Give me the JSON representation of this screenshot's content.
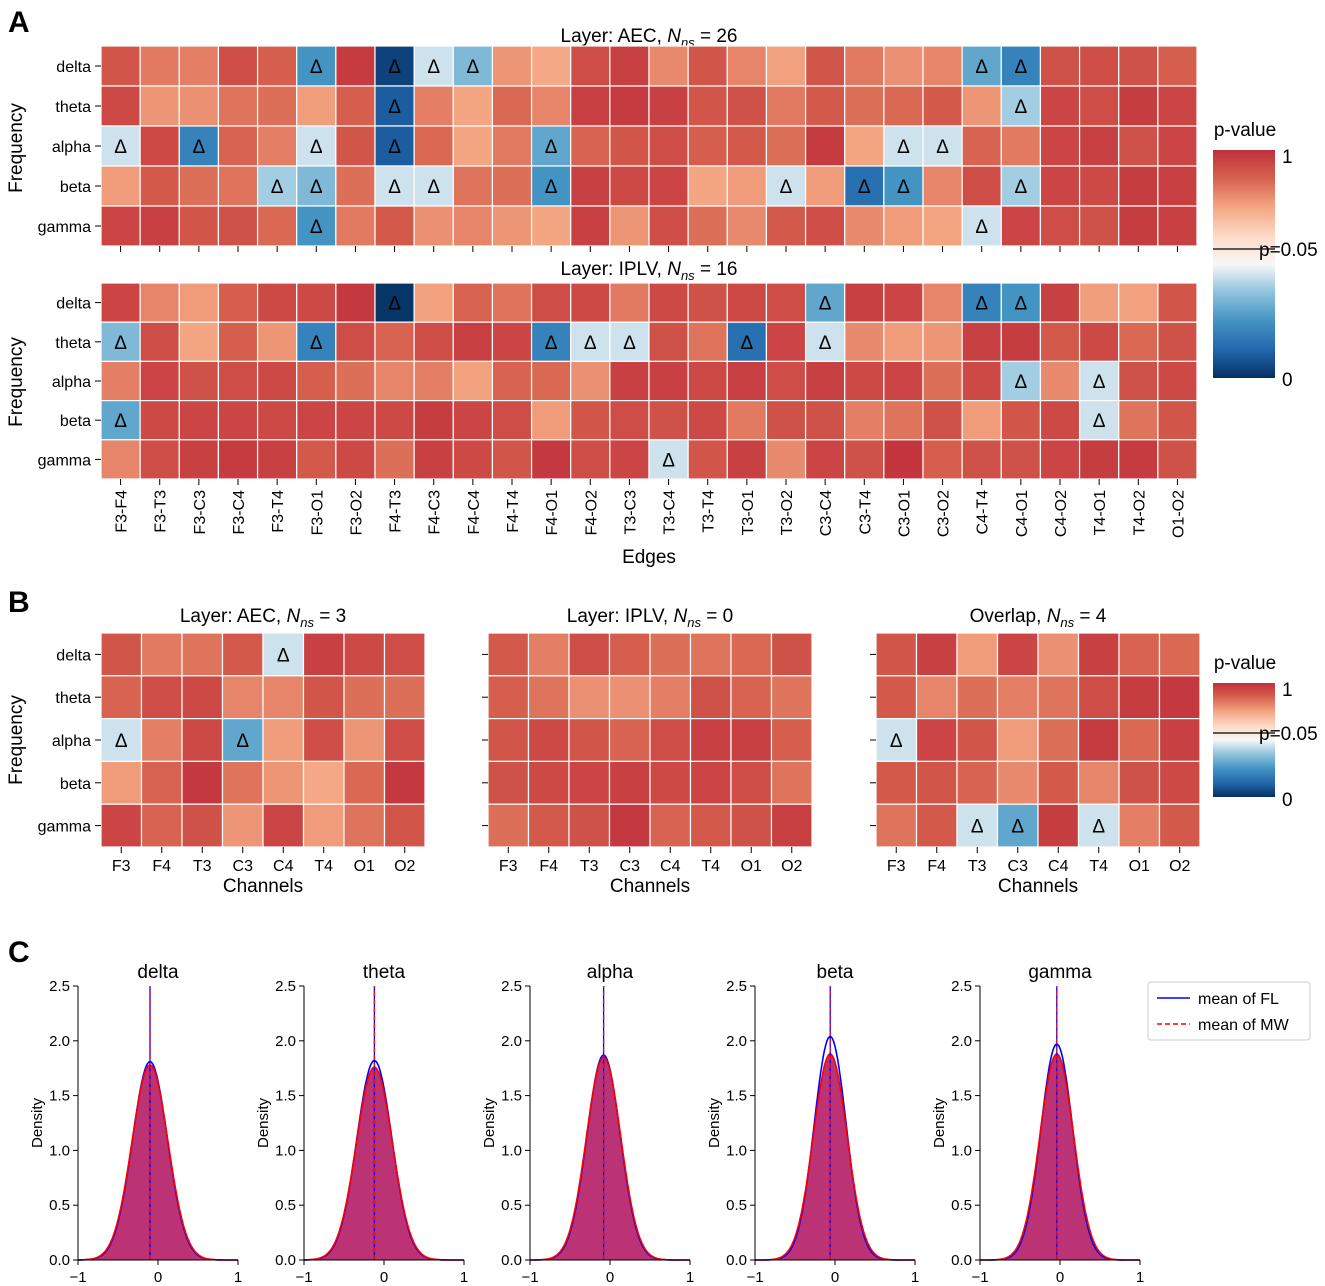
{
  "panels": {
    "a": "A",
    "b": "B",
    "c": "C"
  },
  "colorbar": {
    "title": "p-value",
    "top": "1",
    "bottom": "0",
    "threshold": "p=0.05",
    "threshold_value": 0.05
  },
  "marker": "Δ",
  "chart_data": [
    {
      "type": "heatmap",
      "id": "A1",
      "title_prefix": "Layer: AEC, ",
      "title_n": "N",
      "title_sub": "ns",
      "title_suffix": " = 26",
      "ylabel": "Frequency",
      "rows": [
        "delta",
        "theta",
        "alpha",
        "beta",
        "gamma"
      ],
      "cols": [
        "F3-F4",
        "F3-T3",
        "F3-C3",
        "F3-C4",
        "F3-T4",
        "F3-O1",
        "F3-O2",
        "F4-T3",
        "F4-C3",
        "F4-C4",
        "F4-T4",
        "F4-O1",
        "F4-O2",
        "T3-C3",
        "T3-C4",
        "T3-T4",
        "T3-O1",
        "T3-O2",
        "C3-C4",
        "C3-T4",
        "C3-O1",
        "C3-O2",
        "C4-T4",
        "C4-O1",
        "C4-O2",
        "T4-O1",
        "T4-O2",
        "O1-O2"
      ],
      "show_col_labels": false,
      "values": [
        [
          0.82,
          0.68,
          0.66,
          0.86,
          0.78,
          0.025,
          0.95,
          0.004,
          0.045,
          0.035,
          0.58,
          0.51,
          0.86,
          0.92,
          0.62,
          0.82,
          0.64,
          0.54,
          0.82,
          0.68,
          0.6,
          0.64,
          0.03,
          0.02,
          0.84,
          0.86,
          0.84,
          0.78
        ],
        [
          0.88,
          0.58,
          0.6,
          0.7,
          0.72,
          0.55,
          0.78,
          0.01,
          0.66,
          0.52,
          0.74,
          0.64,
          0.93,
          0.95,
          0.92,
          0.82,
          0.84,
          0.68,
          0.8,
          0.72,
          0.74,
          0.8,
          0.58,
          0.04,
          0.9,
          0.86,
          0.94,
          0.9
        ],
        [
          0.045,
          0.88,
          0.02,
          0.76,
          0.66,
          0.045,
          0.82,
          0.01,
          0.74,
          0.52,
          0.68,
          0.03,
          0.76,
          0.82,
          0.86,
          0.78,
          0.8,
          0.72,
          0.95,
          0.52,
          0.045,
          0.045,
          0.76,
          0.68,
          0.9,
          0.92,
          0.84,
          0.9
        ],
        [
          0.56,
          0.8,
          0.72,
          0.7,
          0.04,
          0.035,
          0.72,
          0.045,
          0.045,
          0.7,
          0.72,
          0.025,
          0.92,
          0.88,
          0.9,
          0.52,
          0.56,
          0.045,
          0.56,
          0.015,
          0.025,
          0.64,
          0.86,
          0.04,
          0.9,
          0.88,
          0.94,
          0.93
        ],
        [
          0.9,
          0.92,
          0.82,
          0.84,
          0.74,
          0.025,
          0.68,
          0.8,
          0.6,
          0.64,
          0.58,
          0.52,
          0.92,
          0.58,
          0.86,
          0.72,
          0.62,
          0.8,
          0.86,
          0.62,
          0.56,
          0.53,
          0.045,
          0.9,
          0.86,
          0.84,
          0.94,
          0.92
        ]
      ]
    },
    {
      "type": "heatmap",
      "id": "A2",
      "title_prefix": "Layer: IPLV, ",
      "title_n": "N",
      "title_sub": "ns",
      "title_suffix": " = 16",
      "ylabel": "Frequency",
      "xlabel": "Edges",
      "rows": [
        "delta",
        "theta",
        "alpha",
        "beta",
        "gamma"
      ],
      "cols": [
        "F3-F4",
        "F3-T3",
        "F3-C3",
        "F3-C4",
        "F3-T4",
        "F3-O1",
        "F3-O2",
        "F4-T3",
        "F4-C3",
        "F4-C4",
        "F4-T4",
        "F4-O1",
        "F4-O2",
        "T3-C3",
        "T3-C4",
        "T3-T4",
        "T3-O1",
        "T3-O2",
        "C3-C4",
        "C3-T4",
        "C3-O1",
        "C3-O2",
        "C4-T4",
        "C4-O1",
        "C4-O2",
        "T4-O1",
        "T4-O2",
        "O1-O2"
      ],
      "show_col_labels": true,
      "values": [
        [
          0.9,
          0.64,
          0.56,
          0.78,
          0.88,
          0.88,
          0.96,
          0.001,
          0.54,
          0.76,
          0.7,
          0.86,
          0.88,
          0.68,
          0.88,
          0.84,
          0.88,
          0.86,
          0.03,
          0.92,
          0.9,
          0.64,
          0.02,
          0.025,
          0.92,
          0.55,
          0.54,
          0.82
        ],
        [
          0.035,
          0.86,
          0.52,
          0.78,
          0.58,
          0.02,
          0.86,
          0.76,
          0.86,
          0.93,
          0.9,
          0.02,
          0.045,
          0.045,
          0.84,
          0.7,
          0.015,
          0.9,
          0.045,
          0.62,
          0.56,
          0.58,
          0.92,
          0.94,
          0.8,
          0.88,
          0.74,
          0.84
        ],
        [
          0.66,
          0.9,
          0.84,
          0.86,
          0.88,
          0.78,
          0.72,
          0.64,
          0.66,
          0.54,
          0.76,
          0.74,
          0.6,
          0.92,
          0.92,
          0.88,
          0.93,
          0.86,
          0.92,
          0.88,
          0.9,
          0.72,
          0.88,
          0.04,
          0.62,
          0.045,
          0.84,
          0.88
        ],
        [
          0.03,
          0.88,
          0.9,
          0.9,
          0.88,
          0.9,
          0.9,
          0.88,
          0.94,
          0.9,
          0.86,
          0.56,
          0.82,
          0.86,
          0.84,
          0.88,
          0.68,
          0.84,
          0.84,
          0.66,
          0.7,
          0.84,
          0.56,
          0.82,
          0.88,
          0.045,
          0.7,
          0.82
        ],
        [
          0.64,
          0.86,
          0.92,
          0.95,
          0.92,
          0.8,
          0.88,
          0.72,
          0.92,
          0.88,
          0.82,
          0.96,
          0.86,
          0.9,
          0.045,
          0.82,
          0.92,
          0.62,
          0.9,
          0.84,
          0.97,
          0.78,
          0.84,
          0.84,
          0.9,
          0.94,
          0.95,
          0.84
        ]
      ]
    },
    {
      "type": "heatmap",
      "id": "B1",
      "title_prefix": "Layer: AEC, ",
      "title_n": "N",
      "title_sub": "ns",
      "title_suffix": " = 3",
      "ylabel": "Frequency",
      "xlabel": "Channels",
      "rows": [
        "delta",
        "theta",
        "alpha",
        "beta",
        "gamma"
      ],
      "cols": [
        "F3",
        "F4",
        "T3",
        "C3",
        "C4",
        "T4",
        "O1",
        "O2"
      ],
      "show_row_labels": true,
      "values": [
        [
          0.82,
          0.68,
          0.7,
          0.8,
          0.045,
          0.92,
          0.88,
          0.86
        ],
        [
          0.76,
          0.86,
          0.88,
          0.64,
          0.64,
          0.82,
          0.72,
          0.72
        ],
        [
          0.045,
          0.66,
          0.88,
          0.03,
          0.56,
          0.86,
          0.58,
          0.86
        ],
        [
          0.56,
          0.76,
          0.96,
          0.7,
          0.58,
          0.51,
          0.74,
          0.96
        ],
        [
          0.9,
          0.76,
          0.84,
          0.58,
          0.9,
          0.56,
          0.7,
          0.82
        ]
      ]
    },
    {
      "type": "heatmap",
      "id": "B2",
      "title_prefix": "Layer: IPLV, ",
      "title_n": "N",
      "title_sub": "ns",
      "title_suffix": " = 0",
      "xlabel": "Channels",
      "rows": [
        "delta",
        "theta",
        "alpha",
        "beta",
        "gamma"
      ],
      "cols": [
        "F3",
        "F4",
        "T3",
        "C3",
        "C4",
        "T4",
        "O1",
        "O2"
      ],
      "show_row_labels": false,
      "values": [
        [
          0.8,
          0.66,
          0.86,
          0.78,
          0.72,
          0.7,
          0.74,
          0.84
        ],
        [
          0.78,
          0.7,
          0.6,
          0.6,
          0.66,
          0.84,
          0.76,
          0.7
        ],
        [
          0.82,
          0.88,
          0.82,
          0.76,
          0.86,
          0.92,
          0.92,
          0.78
        ],
        [
          0.84,
          0.88,
          0.9,
          0.92,
          0.88,
          0.9,
          0.86,
          0.7
        ],
        [
          0.72,
          0.8,
          0.84,
          0.96,
          0.76,
          0.8,
          0.84,
          0.93
        ]
      ]
    },
    {
      "type": "heatmap",
      "id": "B3",
      "title_prefix": "Overlap, ",
      "title_n": "N",
      "title_sub": "ns",
      "title_suffix": " = 4",
      "xlabel": "Channels",
      "rows": [
        "delta",
        "theta",
        "alpha",
        "beta",
        "gamma"
      ],
      "cols": [
        "F3",
        "F4",
        "T3",
        "C3",
        "C4",
        "T4",
        "O1",
        "O2"
      ],
      "show_row_labels": false,
      "values": [
        [
          0.82,
          0.92,
          0.56,
          0.9,
          0.6,
          0.92,
          0.76,
          0.74
        ],
        [
          0.8,
          0.64,
          0.72,
          0.66,
          0.7,
          0.86,
          0.94,
          0.96
        ],
        [
          0.045,
          0.9,
          0.82,
          0.56,
          0.72,
          0.95,
          0.74,
          0.92
        ],
        [
          0.8,
          0.82,
          0.76,
          0.62,
          0.8,
          0.64,
          0.84,
          0.88
        ],
        [
          0.7,
          0.8,
          0.045,
          0.03,
          0.94,
          0.045,
          0.66,
          0.8
        ]
      ]
    },
    {
      "type": "area",
      "id": "C",
      "ylabel": "Density",
      "xlim": [
        -1,
        1
      ],
      "ylim": [
        0,
        2.5
      ],
      "xticks": [
        "−1",
        "0",
        "1"
      ],
      "yticks": [
        "0.0",
        "0.5",
        "1.0",
        "1.5",
        "2.0",
        "2.5"
      ],
      "legend": [
        "mean of FL",
        "mean of MW"
      ],
      "legend_position": "top-right",
      "series_colors": {
        "FL": "#0000ff",
        "MW": "#ff0000",
        "fill": "#b7286e"
      },
      "subplots": [
        {
          "title": "delta",
          "mean": -0.1,
          "sd_FL": 0.22,
          "sd_MW": 0.225,
          "peak_FL": 1.81,
          "peak_MW": 1.78
        },
        {
          "title": "theta",
          "mean": -0.12,
          "sd_FL": 0.22,
          "sd_MW": 0.225,
          "peak_FL": 1.82,
          "peak_MW": 1.76
        },
        {
          "title": "alpha",
          "mean": -0.08,
          "sd_FL": 0.21,
          "sd_MW": 0.215,
          "peak_FL": 1.87,
          "peak_MW": 1.85
        },
        {
          "title": "beta",
          "mean": -0.06,
          "sd_FL": 0.2,
          "sd_MW": 0.21,
          "peak_FL": 2.04,
          "peak_MW": 1.88
        },
        {
          "title": "gamma",
          "mean": -0.04,
          "sd_FL": 0.2,
          "sd_MW": 0.21,
          "peak_FL": 1.97,
          "peak_MW": 1.88
        }
      ]
    }
  ]
}
